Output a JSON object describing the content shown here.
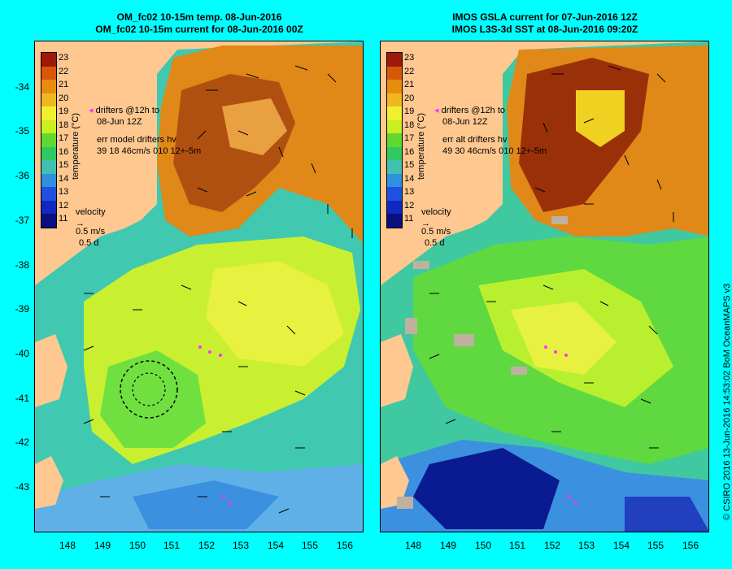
{
  "left_panel": {
    "title_line1": "OM_fc02 10-15m temp. 08-Jun-2016",
    "title_line2": "OM_fc02 10-15m current for 08-Jun-2016 00Z",
    "drifters_label_1": "drifters @12h to",
    "drifters_label_2": "08-Jun 12Z",
    "err_label_1": "err model drifters hv",
    "err_label_2": "39 18 46cm/s 010 12+-5m",
    "velocity_label": "velocity",
    "velocity_scale": "0.5 m/s",
    "velocity_time": "0.5 d"
  },
  "right_panel": {
    "title_line1": "IMOS GSLA current for 07-Jun-2016 12Z",
    "title_line2": "IMOS L3S-3d SST at 08-Jun-2016 09:20Z",
    "drifters_label_1": "drifters @12h to",
    "drifters_label_2": "08-Jun 12Z",
    "err_label_1": "err alt drifters hv",
    "err_label_2": "49 30 46cm/s 010 12+-5m",
    "velocity_label": "velocity",
    "velocity_scale": "0.5 m/s",
    "velocity_time": "0.5 d"
  },
  "colorbar": {
    "title": "temperature (°C)",
    "labels": [
      "23",
      "22",
      "21",
      "20",
      "19",
      "18",
      "17",
      "16",
      "15",
      "14",
      "13",
      "12",
      "11"
    ],
    "colors": [
      "#a01808",
      "#d85808",
      "#e88c10",
      "#f0b820",
      "#f0f030",
      "#c8f020",
      "#60d830",
      "#30c860",
      "#40c0b0",
      "#3090e0",
      "#2050e0",
      "#1028c0",
      "#081080"
    ]
  },
  "y_ticks": [
    "-34",
    "-35",
    "-36",
    "-37",
    "-38",
    "-39",
    "-40",
    "-41",
    "-42",
    "-43"
  ],
  "x_ticks": [
    "148",
    "149",
    "150",
    "151",
    "152",
    "153",
    "154",
    "155",
    "156"
  ],
  "credit": "© CSIRO 2016  13-Jun-2016 14:53:02 BoM OceanMAPS v3",
  "colors": {
    "background": "#00ffff",
    "land": "#ffc890",
    "warm": "#b05010",
    "orange": "#e08818",
    "yellow": "#e0f040",
    "green": "#70e040",
    "teal": "#40c8b0",
    "blue": "#4090e0",
    "drifter": "#ff30ff"
  }
}
